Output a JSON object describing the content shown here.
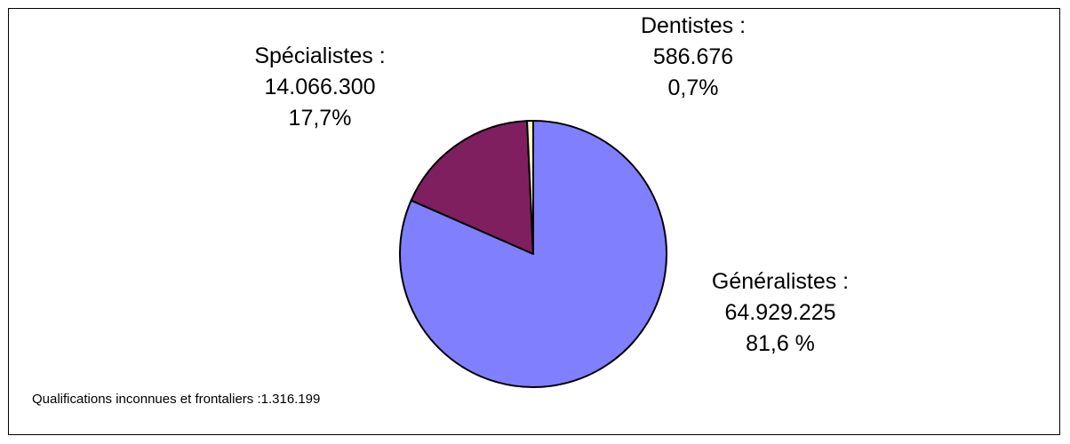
{
  "chart_data": {
    "type": "pie",
    "slices": [
      {
        "name": "Généralistes",
        "value": 64929225,
        "percent": 81.6,
        "color": "#8080ff",
        "label_name": "Généralistes :",
        "label_value": "64.929.225",
        "label_pct": "81,6 %"
      },
      {
        "name": "Spécialistes",
        "value": 14066300,
        "percent": 17.7,
        "color": "#7f1f5f",
        "label_name": "Spécialistes :",
        "label_value": "14.066.300",
        "label_pct": "17,7%"
      },
      {
        "name": "Dentistes",
        "value": 586676,
        "percent": 0.7,
        "color": "#ffffcc",
        "label_name": "Dentistes :",
        "label_value": "586.676",
        "label_pct": "0,7%"
      }
    ],
    "start_angle_deg": 0,
    "direction": "clockwise",
    "footnote": "Qualifications inconnues et frontaliers :1.316.199"
  }
}
